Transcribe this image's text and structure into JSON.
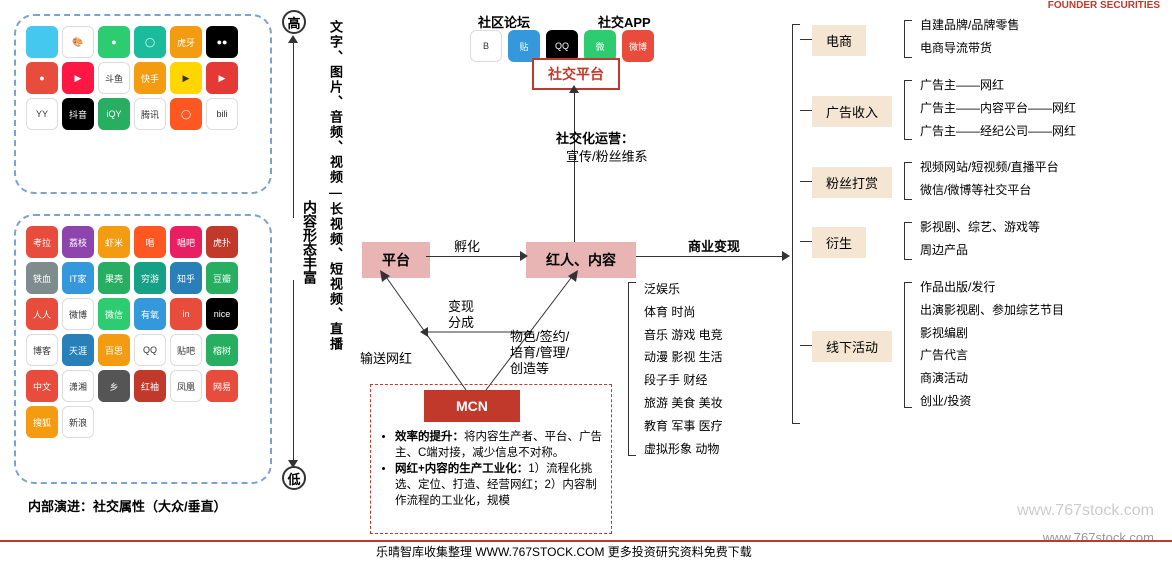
{
  "left_caption": "内部演进：社交属性（大众/垂直）",
  "axis_high": "高",
  "axis_low": "低",
  "axis_left_label": "内容形态丰富",
  "axis_right_label": "文字、图片、音频、视频—长视频、短视频、直播",
  "top_box_apps": [
    {
      "bg": "#45c8f0",
      "txt": ""
    },
    {
      "bg": "#fff",
      "txt": "🎨"
    },
    {
      "bg": "#2ecc71",
      "txt": "●"
    },
    {
      "bg": "#1abc9c",
      "txt": "◯"
    },
    {
      "bg": "#f39c12",
      "txt": "虎牙"
    },
    {
      "bg": "#000",
      "txt": "●●"
    },
    {
      "bg": "#e74c3c",
      "txt": "●"
    },
    {
      "bg": "#ff1744",
      "txt": "▶"
    },
    {
      "bg": "#fff",
      "txt": "斗鱼"
    },
    {
      "bg": "#f39c12",
      "txt": "快手"
    },
    {
      "bg": "#ffd600",
      "txt": "▶"
    },
    {
      "bg": "#e53935",
      "txt": "▶"
    },
    {
      "bg": "#fff",
      "txt": "YY"
    },
    {
      "bg": "#000",
      "txt": "抖音"
    },
    {
      "bg": "#27ae60",
      "txt": "iQY"
    },
    {
      "bg": "#fff",
      "txt": "腾讯"
    },
    {
      "bg": "#ff5722",
      "txt": "◯"
    },
    {
      "bg": "#fff",
      "txt": "bili"
    }
  ],
  "bottom_box_apps": [
    {
      "bg": "#e74c3c",
      "txt": "考拉"
    },
    {
      "bg": "#8e44ad",
      "txt": "荔枝"
    },
    {
      "bg": "#f39c12",
      "txt": "虾米"
    },
    {
      "bg": "#ff5722",
      "txt": "唱"
    },
    {
      "bg": "#e91e63",
      "txt": "唱吧"
    },
    {
      "bg": "#c0392b",
      "txt": "虎扑"
    },
    {
      "bg": "#7f8c8d",
      "txt": "铁血"
    },
    {
      "bg": "#3498db",
      "txt": "IT家"
    },
    {
      "bg": "#27ae60",
      "txt": "果壳"
    },
    {
      "bg": "#16a085",
      "txt": "穷游"
    },
    {
      "bg": "#2980b9",
      "txt": "知乎"
    },
    {
      "bg": "#27ae60",
      "txt": "豆瓣"
    },
    {
      "bg": "#e74c3c",
      "txt": "人人"
    },
    {
      "bg": "#fff",
      "txt": "微博"
    },
    {
      "bg": "#2ecc71",
      "txt": "微信"
    },
    {
      "bg": "#3498db",
      "txt": "有氧"
    },
    {
      "bg": "#e74c3c",
      "txt": "in"
    },
    {
      "bg": "#000",
      "txt": "nice"
    },
    {
      "bg": "#fff",
      "txt": "博客"
    },
    {
      "bg": "#2980b9",
      "txt": "天涯"
    },
    {
      "bg": "#f39c12",
      "txt": "百思"
    },
    {
      "bg": "#fff",
      "txt": "QQ"
    },
    {
      "bg": "#fff",
      "txt": "贴吧"
    },
    {
      "bg": "#27ae60",
      "txt": "榕树"
    },
    {
      "bg": "#e74c3c",
      "txt": "中文"
    },
    {
      "bg": "#fff",
      "txt": "潇湘"
    },
    {
      "bg": "#555",
      "txt": "乡"
    },
    {
      "bg": "#c0392b",
      "txt": "红袖"
    },
    {
      "bg": "#fff",
      "txt": "凤凰"
    },
    {
      "bg": "#e74c3c",
      "txt": "网易"
    },
    {
      "bg": "#f39c12",
      "txt": "搜狐"
    },
    {
      "bg": "#fff",
      "txt": "新浪"
    }
  ],
  "social_forum": "社区论坛",
  "social_app": "社交APP",
  "social_icons": [
    {
      "bg": "#fff",
      "txt": "B"
    },
    {
      "bg": "#3498db",
      "txt": "贴"
    },
    {
      "bg": "#000",
      "txt": "QQ"
    },
    {
      "bg": "#2ecc71",
      "txt": "微"
    },
    {
      "bg": "#e74c3c",
      "txt": "微博"
    }
  ],
  "social_platform_node": "社交平台",
  "social_ops_title": "社交化运营：",
  "social_ops_sub": "宣传/粉丝维系",
  "node_platform": "平台",
  "node_content": "红人、内容",
  "node_mcn": "MCN",
  "arrow_incubate": "孵化",
  "arrow_monetize": "商业变现",
  "arrow_supply": "输送网红",
  "arrow_split_1": "变现",
  "arrow_split_2": "分成",
  "arrow_manage_1": "物色/签约/",
  "arrow_manage_2": "培育/管理/",
  "arrow_manage_3": "创造等",
  "mcn_bullets": [
    "效率的提升：将内容生产者、平台、广告主、C端对接，减少信息不对称。",
    "网红+内容的生产工业化：1）流程化挑选、定位、打造、经营网红；2）内容制作流程的工业化，规模"
  ],
  "content_categories": [
    "泛娱乐",
    "体育 时尚",
    "音乐 游戏 电竞",
    "动漫 影视 生活",
    "段子手 财经",
    "旅游 美食 美妆",
    "教育 军事 医疗",
    "虚拟形象 动物"
  ],
  "right_categories": [
    {
      "name": "电商",
      "items": [
        "自建品牌/品牌零售",
        "电商导流带货"
      ]
    },
    {
      "name": "广告收入",
      "items": [
        "广告主——网红",
        "广告主——内容平台——网红",
        "广告主——经纪公司——网红"
      ]
    },
    {
      "name": "粉丝打赏",
      "items": [
        "视频网站/短视频/直播平台",
        "微信/微博等社交平台"
      ]
    },
    {
      "name": "衍生",
      "items": [
        "影视剧、综艺、游戏等",
        "周边产品"
      ]
    },
    {
      "name": "线下活动",
      "items": [
        "作品出版/发行",
        "出演影视剧、参加综艺节目",
        "影视编剧",
        "广告代言",
        "商演活动",
        "创业/投资"
      ]
    }
  ],
  "footer_text": "乐晴智库收集整理 WWW.767STOCK.COM 更多投资研究资料免费下载",
  "watermark1": "www.767stock.com",
  "watermark2": "www.767stock.com",
  "brand": "FOUNDER SECURITIES",
  "colors": {
    "node_pink": "#e8b4b4",
    "node_red": "#c0392b",
    "cat_bg": "#f5e6d3",
    "dash": "#7ba3d0"
  }
}
